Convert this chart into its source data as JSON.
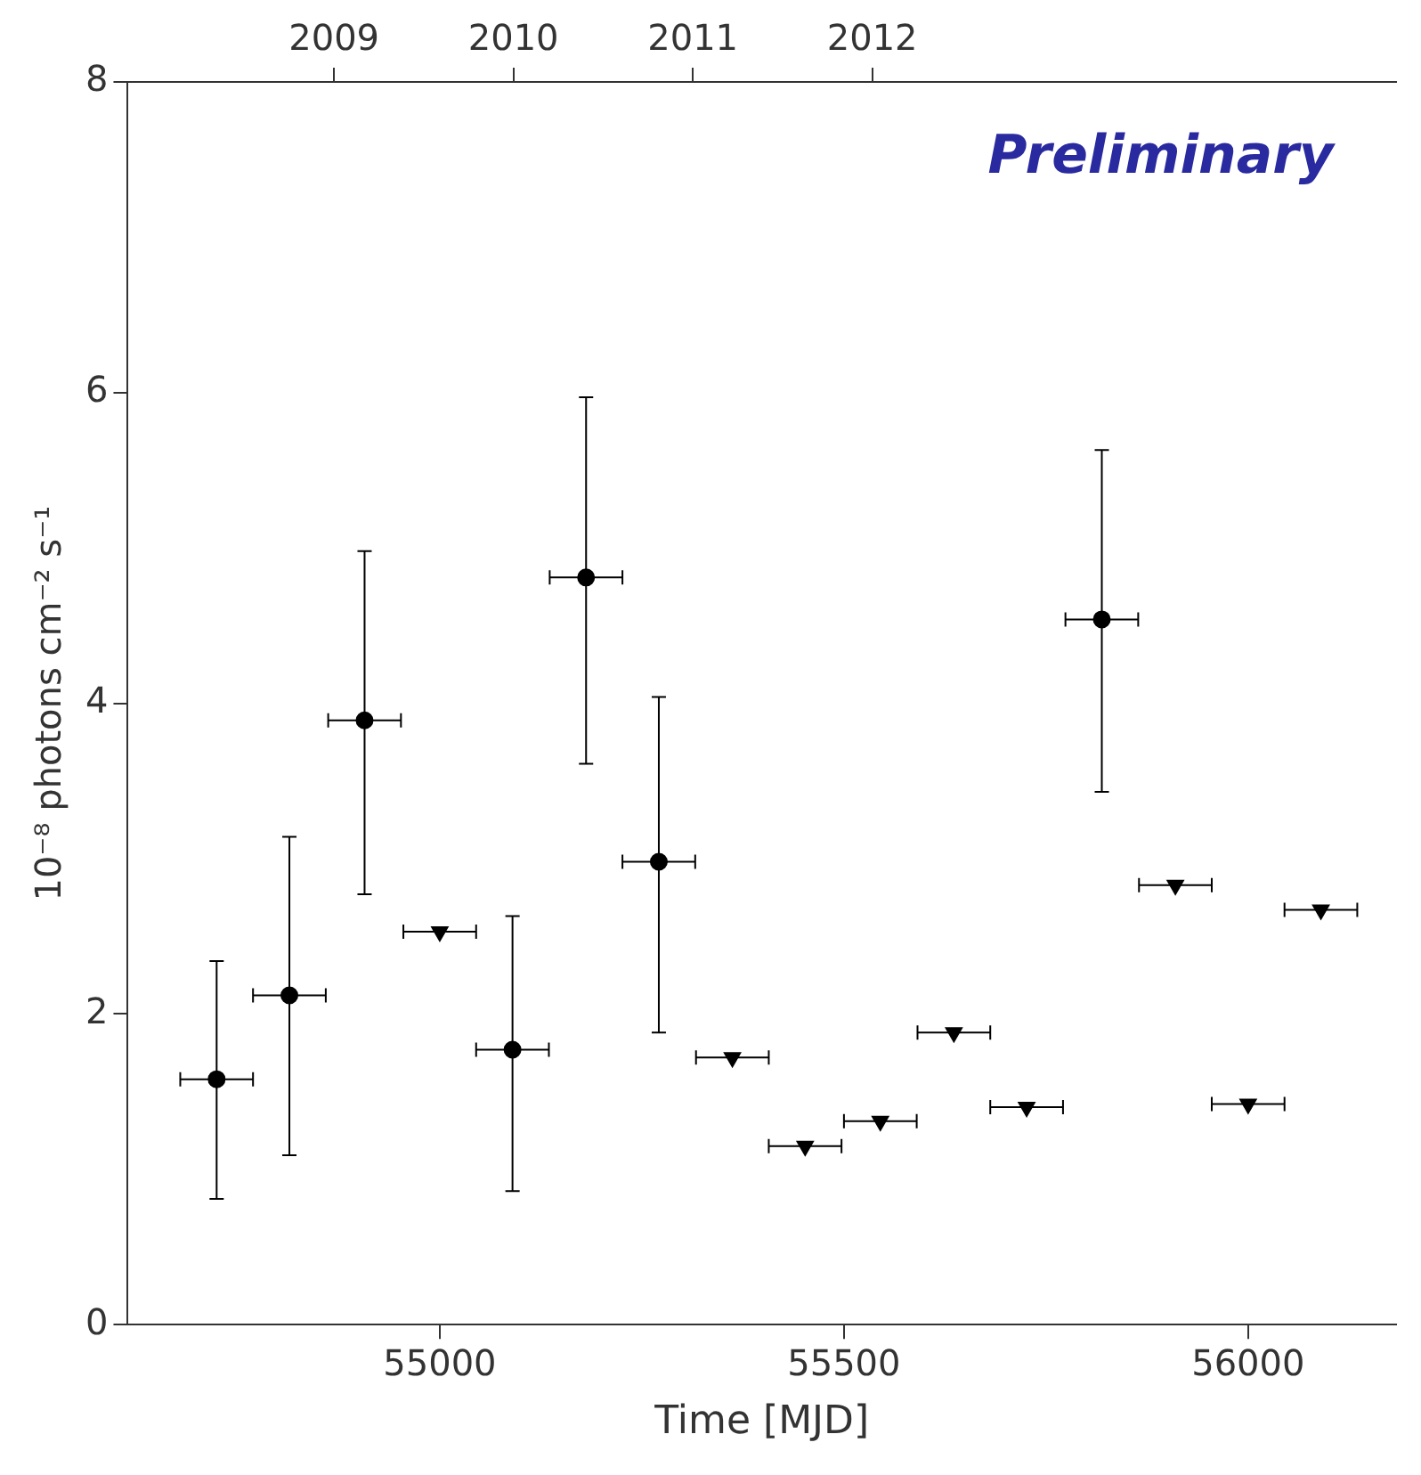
{
  "chart_data": {
    "type": "scatter",
    "xlabel": "Time [MJD]",
    "ylabel": "10⁻⁸ photons cm⁻² s⁻¹",
    "xlim": [
      54614,
      56183
    ],
    "xticks": [
      55000,
      55500,
      56000
    ],
    "ylim": [
      0,
      8
    ],
    "yticks": [
      0,
      2,
      4,
      6,
      8
    ],
    "x2lim": [
      2007.85,
      2014.92
    ],
    "x2ticks": [
      2009,
      2010,
      2011,
      2012
    ],
    "grid": false,
    "legend": false,
    "annotations": [
      "Preliminary"
    ],
    "series": [
      {
        "color": "#000000",
        "marker": "circle",
        "x": [
          54724,
          54814,
          54907,
          55090,
          55181,
          55271,
          55819
        ],
        "values": [
          1.58,
          2.12,
          3.89,
          1.77,
          4.81,
          2.98,
          4.54
        ],
        "errors": [
          [
            0.81,
            2.34
          ],
          [
            1.09,
            3.14
          ],
          [
            2.77,
            4.98
          ],
          [
            0.86,
            2.63
          ],
          [
            3.61,
            5.97
          ],
          [
            1.88,
            4.04
          ],
          [
            3.43,
            5.63
          ]
        ],
        "xerrors": [
          45,
          45,
          45,
          45,
          45,
          45,
          45
        ]
      },
      {
        "color": "#000000",
        "marker": "triangle",
        "x": [
          55000,
          55362,
          55452,
          55545,
          55636,
          55726,
          55910,
          56000,
          56090
        ],
        "values": [
          2.53,
          1.72,
          1.15,
          1.31,
          1.88,
          1.4,
          2.83,
          1.42,
          2.67
        ],
        "xerrors": [
          45,
          45,
          45,
          45,
          45,
          45,
          45,
          45,
          45
        ]
      }
    ]
  }
}
